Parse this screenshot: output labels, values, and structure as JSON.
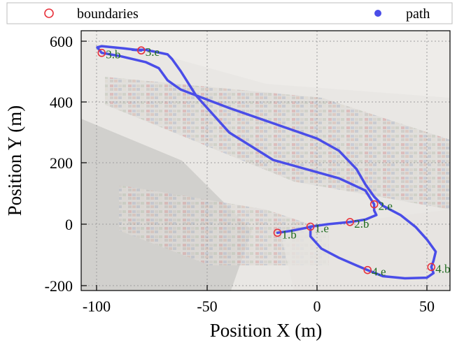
{
  "chart_data": {
    "type": "scatter",
    "xlabel": "Position X (m)",
    "ylabel": "Position Y (m)",
    "xlim": [
      -107,
      61
    ],
    "ylim": [
      -215,
      635
    ],
    "xticks": [
      -100,
      -50,
      0,
      50
    ],
    "yticks": [
      -200,
      0,
      200,
      400,
      600
    ],
    "x_tick_labels": [
      "-100",
      "-50",
      "0",
      "50"
    ],
    "y_tick_labels": [
      "-200",
      "0",
      "200",
      "400",
      "600"
    ],
    "grid": true,
    "legend_position": "top",
    "background": "aerial photo of a container port",
    "series": [
      {
        "name": "boundaries",
        "marker": "open-circle",
        "color": "#e8323c",
        "points": [
          {
            "label": "1.b",
            "x": -18,
            "y": -28
          },
          {
            "label": "1.e",
            "x": -3,
            "y": -8
          },
          {
            "label": "2.b",
            "x": 15,
            "y": 7
          },
          {
            "label": "2.e",
            "x": 26,
            "y": 65
          },
          {
            "label": "3.b",
            "x": -98,
            "y": 560
          },
          {
            "label": "3.e",
            "x": -80,
            "y": 568
          },
          {
            "label": "4.b",
            "x": 52,
            "y": -140
          },
          {
            "label": "4.e",
            "x": 23,
            "y": -150
          }
        ]
      },
      {
        "name": "path",
        "marker": "filled-circle",
        "color": "#4a4de8",
        "points": [
          [
            -18,
            -28
          ],
          [
            -12,
            -22
          ],
          [
            -5,
            -12
          ],
          [
            -3,
            -8
          ],
          [
            5,
            0
          ],
          [
            15,
            7
          ],
          [
            22,
            15
          ],
          [
            27,
            30
          ],
          [
            26,
            45
          ],
          [
            26,
            65
          ],
          [
            22,
            110
          ],
          [
            10,
            150
          ],
          [
            -20,
            210
          ],
          [
            -40,
            300
          ],
          [
            -55,
            420
          ],
          [
            -62,
            500
          ],
          [
            -66,
            540
          ],
          [
            -68,
            555
          ],
          [
            -78,
            570
          ],
          [
            -84,
            570
          ],
          [
            -80,
            568
          ],
          [
            -88,
            575
          ],
          [
            -98,
            582
          ],
          [
            -100,
            578
          ],
          [
            -98,
            560
          ],
          [
            -90,
            550
          ],
          [
            -78,
            530
          ],
          [
            -72,
            510
          ],
          [
            -68,
            470
          ],
          [
            -62,
            440
          ],
          [
            -40,
            380
          ],
          [
            -20,
            330
          ],
          [
            0,
            280
          ],
          [
            10,
            240
          ],
          [
            18,
            180
          ],
          [
            22,
            130
          ],
          [
            26,
            90
          ],
          [
            30,
            60
          ],
          [
            38,
            30
          ],
          [
            45,
            -10
          ],
          [
            50,
            -50
          ],
          [
            54,
            -90
          ],
          [
            53,
            -120
          ],
          [
            52,
            -140
          ],
          [
            53,
            -160
          ],
          [
            50,
            -175
          ],
          [
            40,
            -177
          ],
          [
            30,
            -170
          ],
          [
            23,
            -150
          ],
          [
            18,
            -135
          ],
          [
            10,
            -110
          ],
          [
            2,
            -80
          ],
          [
            -3,
            -40
          ],
          [
            -3,
            -8
          ]
        ]
      }
    ]
  }
}
